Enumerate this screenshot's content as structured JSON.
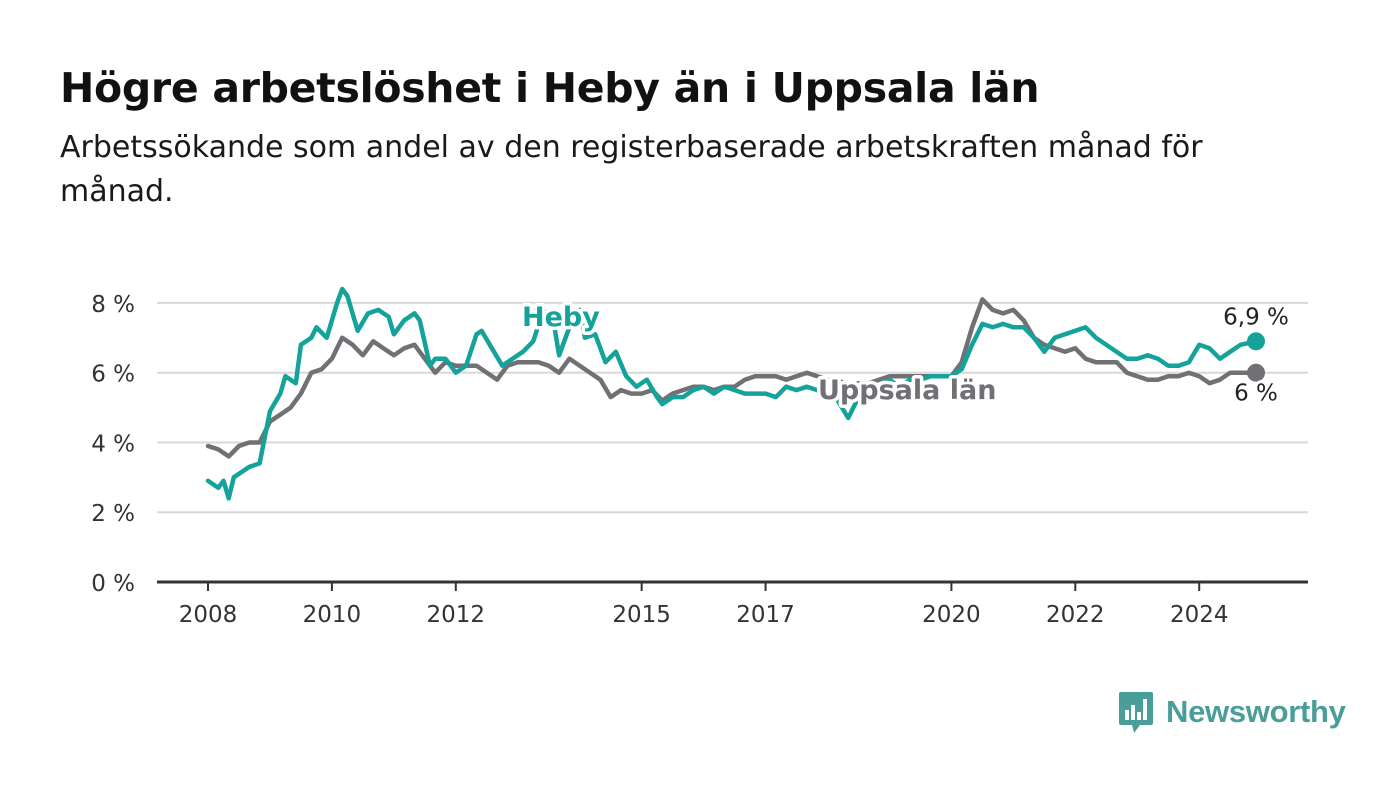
{
  "header": {
    "title": "Högre arbetslöshet i Heby än i Uppsala län",
    "subtitle": "Arbetssökande som andel av den registerbaserade arbetskraften månad för månad."
  },
  "logo": {
    "text": "Newsworthy",
    "icon": "newsworthy-chart-bubble-icon",
    "color": "#4a9e9a"
  },
  "chart_data": {
    "type": "line",
    "title": "Högre arbetslöshet i Heby än i Uppsala län",
    "subtitle": "Arbetssökande som andel av den registerbaserade arbetskraften månad för månad.",
    "xlabel": "",
    "ylabel": "",
    "x_start": "2008-01",
    "x_end": "2024-12",
    "x_ticks": [
      {
        "value": 2008,
        "label": "2008"
      },
      {
        "value": 2010,
        "label": "2010"
      },
      {
        "value": 2012,
        "label": "2012"
      },
      {
        "value": 2015,
        "label": "2015"
      },
      {
        "value": 2017,
        "label": "2017"
      },
      {
        "value": 2020,
        "label": "2020"
      },
      {
        "value": 2022,
        "label": "2022"
      },
      {
        "value": 2024,
        "label": "2024"
      }
    ],
    "y_ticks": [
      {
        "value": 0,
        "label": "0 %"
      },
      {
        "value": 2,
        "label": "2 %"
      },
      {
        "value": 4,
        "label": "4 %"
      },
      {
        "value": 6,
        "label": "6 %"
      },
      {
        "value": 8,
        "label": "8 %"
      }
    ],
    "ylim": [
      0,
      8.6
    ],
    "grid": true,
    "series": [
      {
        "name": "Heby",
        "color": "#14a39a",
        "end_label": "6,9 %",
        "points": [
          [
            "2008-01",
            2.9
          ],
          [
            "2008-03",
            2.7
          ],
          [
            "2008-04",
            2.9
          ],
          [
            "2008-05",
            2.4
          ],
          [
            "2008-06",
            3.0
          ],
          [
            "2008-08",
            3.2
          ],
          [
            "2008-09",
            3.3
          ],
          [
            "2008-11",
            3.4
          ],
          [
            "2009-01",
            4.9
          ],
          [
            "2009-03",
            5.4
          ],
          [
            "2009-04",
            5.9
          ],
          [
            "2009-06",
            5.7
          ],
          [
            "2009-07",
            6.8
          ],
          [
            "2009-09",
            7.0
          ],
          [
            "2009-10",
            7.3
          ],
          [
            "2009-12",
            7.0
          ],
          [
            "2010-02",
            8.0
          ],
          [
            "2010-03",
            8.4
          ],
          [
            "2010-04",
            8.2
          ],
          [
            "2010-06",
            7.2
          ],
          [
            "2010-08",
            7.7
          ],
          [
            "2010-10",
            7.8
          ],
          [
            "2010-12",
            7.6
          ],
          [
            "2011-01",
            7.1
          ],
          [
            "2011-03",
            7.5
          ],
          [
            "2011-05",
            7.7
          ],
          [
            "2011-06",
            7.5
          ],
          [
            "2011-08",
            6.2
          ],
          [
            "2011-09",
            6.4
          ],
          [
            "2011-11",
            6.4
          ],
          [
            "2012-01",
            6.0
          ],
          [
            "2012-03",
            6.2
          ],
          [
            "2012-05",
            7.1
          ],
          [
            "2012-06",
            7.2
          ],
          [
            "2012-08",
            6.7
          ],
          [
            "2012-10",
            6.2
          ],
          [
            "2012-12",
            6.4
          ],
          [
            "2013-02",
            6.6
          ],
          [
            "2013-04",
            6.9
          ],
          [
            "2013-06",
            7.8
          ],
          [
            "2013-08",
            7.4
          ],
          [
            "2013-09",
            6.5
          ],
          [
            "2013-11",
            7.3
          ],
          [
            "2014-01",
            7.8
          ],
          [
            "2014-02",
            7.0
          ],
          [
            "2014-04",
            7.1
          ],
          [
            "2014-06",
            6.3
          ],
          [
            "2014-08",
            6.6
          ],
          [
            "2014-10",
            5.9
          ],
          [
            "2014-12",
            5.6
          ],
          [
            "2015-02",
            5.8
          ],
          [
            "2015-04",
            5.3
          ],
          [
            "2015-05",
            5.1
          ],
          [
            "2015-07",
            5.3
          ],
          [
            "2015-09",
            5.3
          ],
          [
            "2015-11",
            5.5
          ],
          [
            "2016-01",
            5.6
          ],
          [
            "2016-03",
            5.4
          ],
          [
            "2016-05",
            5.6
          ],
          [
            "2016-07",
            5.5
          ],
          [
            "2016-09",
            5.4
          ],
          [
            "2016-11",
            5.4
          ],
          [
            "2017-01",
            5.4
          ],
          [
            "2017-03",
            5.3
          ],
          [
            "2017-05",
            5.6
          ],
          [
            "2017-07",
            5.5
          ],
          [
            "2017-09",
            5.6
          ],
          [
            "2017-11",
            5.5
          ],
          [
            "2018-01",
            5.4
          ],
          [
            "2018-03",
            5.2
          ],
          [
            "2018-05",
            4.7
          ],
          [
            "2018-07",
            5.3
          ],
          [
            "2018-09",
            5.3
          ],
          [
            "2018-11",
            5.6
          ],
          [
            "2019-01",
            5.8
          ],
          [
            "2019-03",
            5.6
          ],
          [
            "2019-05",
            5.8
          ],
          [
            "2019-07",
            5.8
          ],
          [
            "2019-09",
            5.9
          ],
          [
            "2019-11",
            5.9
          ],
          [
            "2020-01",
            5.9
          ],
          [
            "2020-03",
            6.1
          ],
          [
            "2020-05",
            6.8
          ],
          [
            "2020-07",
            7.4
          ],
          [
            "2020-09",
            7.3
          ],
          [
            "2020-11",
            7.4
          ],
          [
            "2021-01",
            7.3
          ],
          [
            "2021-03",
            7.3
          ],
          [
            "2021-05",
            7.0
          ],
          [
            "2021-07",
            6.6
          ],
          [
            "2021-09",
            7.0
          ],
          [
            "2021-11",
            7.1
          ],
          [
            "2022-01",
            7.2
          ],
          [
            "2022-03",
            7.3
          ],
          [
            "2022-05",
            7.0
          ],
          [
            "2022-07",
            6.8
          ],
          [
            "2022-09",
            6.6
          ],
          [
            "2022-11",
            6.4
          ],
          [
            "2023-01",
            6.4
          ],
          [
            "2023-03",
            6.5
          ],
          [
            "2023-05",
            6.4
          ],
          [
            "2023-07",
            6.2
          ],
          [
            "2023-09",
            6.2
          ],
          [
            "2023-11",
            6.3
          ],
          [
            "2024-01",
            6.8
          ],
          [
            "2024-03",
            6.7
          ],
          [
            "2024-05",
            6.4
          ],
          [
            "2024-07",
            6.6
          ],
          [
            "2024-09",
            6.8
          ],
          [
            "2024-12",
            6.9
          ]
        ]
      },
      {
        "name": "Uppsala län",
        "color": "#707075",
        "end_label": "6 %",
        "points": [
          [
            "2008-01",
            3.9
          ],
          [
            "2008-03",
            3.8
          ],
          [
            "2008-05",
            3.6
          ],
          [
            "2008-07",
            3.9
          ],
          [
            "2008-09",
            4.0
          ],
          [
            "2008-11",
            4.0
          ],
          [
            "2009-01",
            4.6
          ],
          [
            "2009-03",
            4.8
          ],
          [
            "2009-05",
            5.0
          ],
          [
            "2009-07",
            5.4
          ],
          [
            "2009-09",
            6.0
          ],
          [
            "2009-11",
            6.1
          ],
          [
            "2010-01",
            6.4
          ],
          [
            "2010-03",
            7.0
          ],
          [
            "2010-05",
            6.8
          ],
          [
            "2010-07",
            6.5
          ],
          [
            "2010-09",
            6.9
          ],
          [
            "2010-11",
            6.7
          ],
          [
            "2011-01",
            6.5
          ],
          [
            "2011-03",
            6.7
          ],
          [
            "2011-05",
            6.8
          ],
          [
            "2011-07",
            6.4
          ],
          [
            "2011-09",
            6.0
          ],
          [
            "2011-11",
            6.3
          ],
          [
            "2012-01",
            6.2
          ],
          [
            "2012-03",
            6.2
          ],
          [
            "2012-05",
            6.2
          ],
          [
            "2012-07",
            6.0
          ],
          [
            "2012-09",
            5.8
          ],
          [
            "2012-11",
            6.2
          ],
          [
            "2013-01",
            6.3
          ],
          [
            "2013-03",
            6.3
          ],
          [
            "2013-05",
            6.3
          ],
          [
            "2013-07",
            6.2
          ],
          [
            "2013-09",
            6.0
          ],
          [
            "2013-11",
            6.4
          ],
          [
            "2014-01",
            6.2
          ],
          [
            "2014-03",
            6.0
          ],
          [
            "2014-05",
            5.8
          ],
          [
            "2014-07",
            5.3
          ],
          [
            "2014-09",
            5.5
          ],
          [
            "2014-11",
            5.4
          ],
          [
            "2015-01",
            5.4
          ],
          [
            "2015-03",
            5.5
          ],
          [
            "2015-05",
            5.2
          ],
          [
            "2015-07",
            5.4
          ],
          [
            "2015-09",
            5.5
          ],
          [
            "2015-11",
            5.6
          ],
          [
            "2016-01",
            5.6
          ],
          [
            "2016-03",
            5.5
          ],
          [
            "2016-05",
            5.6
          ],
          [
            "2016-07",
            5.6
          ],
          [
            "2016-09",
            5.8
          ],
          [
            "2016-11",
            5.9
          ],
          [
            "2017-01",
            5.9
          ],
          [
            "2017-03",
            5.9
          ],
          [
            "2017-05",
            5.8
          ],
          [
            "2017-07",
            5.9
          ],
          [
            "2017-09",
            6.0
          ],
          [
            "2017-11",
            5.9
          ],
          [
            "2018-01",
            5.8
          ],
          [
            "2018-03",
            5.8
          ],
          [
            "2018-05",
            5.6
          ],
          [
            "2018-07",
            5.7
          ],
          [
            "2018-09",
            5.7
          ],
          [
            "2018-11",
            5.8
          ],
          [
            "2019-01",
            5.9
          ],
          [
            "2019-03",
            5.9
          ],
          [
            "2019-05",
            5.9
          ],
          [
            "2019-07",
            5.9
          ],
          [
            "2019-09",
            5.9
          ],
          [
            "2019-11",
            5.9
          ],
          [
            "2020-01",
            5.9
          ],
          [
            "2020-03",
            6.3
          ],
          [
            "2020-05",
            7.3
          ],
          [
            "2020-07",
            8.1
          ],
          [
            "2020-09",
            7.8
          ],
          [
            "2020-11",
            7.7
          ],
          [
            "2021-01",
            7.8
          ],
          [
            "2021-03",
            7.5
          ],
          [
            "2021-05",
            7.0
          ],
          [
            "2021-07",
            6.8
          ],
          [
            "2021-09",
            6.7
          ],
          [
            "2021-11",
            6.6
          ],
          [
            "2022-01",
            6.7
          ],
          [
            "2022-03",
            6.4
          ],
          [
            "2022-05",
            6.3
          ],
          [
            "2022-07",
            6.3
          ],
          [
            "2022-09",
            6.3
          ],
          [
            "2022-11",
            6.0
          ],
          [
            "2023-01",
            5.9
          ],
          [
            "2023-03",
            5.8
          ],
          [
            "2023-05",
            5.8
          ],
          [
            "2023-07",
            5.9
          ],
          [
            "2023-09",
            5.9
          ],
          [
            "2023-11",
            6.0
          ],
          [
            "2024-01",
            5.9
          ],
          [
            "2024-03",
            5.7
          ],
          [
            "2024-05",
            5.8
          ],
          [
            "2024-07",
            6.0
          ],
          [
            "2024-09",
            6.0
          ],
          [
            "2024-12",
            6.0
          ]
        ]
      }
    ]
  }
}
